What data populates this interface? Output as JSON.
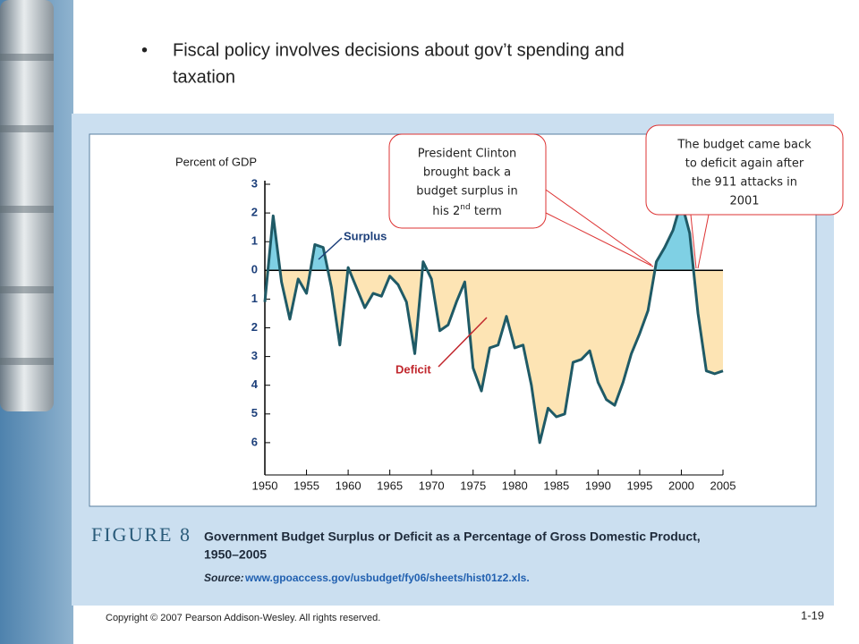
{
  "slide": {
    "bullet": [
      "Fiscal policy involves decisions about gov’t spending and",
      "taxation"
    ],
    "copyright": "Copyright © 2007 Pearson Addison-Wesley. All rights reserved.",
    "page": "1-19",
    "figure_label": "FIGURE 8",
    "caption": [
      "Government Budget Surplus or Deficit as a Percentage of Gross Domestic Product,",
      "1950–2005"
    ],
    "source_label": "Source:",
    "source_url": "www.gpoaccess.gov/usbudget/fy06/sheets/hist01z2.xls.",
    "callout_clinton": {
      "lines": [
        "President Clinton",
        "brought back a",
        "budget surplus in"
      ],
      "last": [
        "his 2",
        "nd",
        " term"
      ]
    },
    "callout_911": {
      "lines": [
        "The budget came back",
        "to deficit again after",
        "the 911 attacks in",
        "2001"
      ]
    }
  },
  "chart_data": {
    "type": "line",
    "y_label": "Percent of GDP",
    "annotations": {
      "surplus": "Surplus",
      "deficit": "Deficit"
    },
    "x": [
      1950,
      1951,
      1952,
      1953,
      1954,
      1955,
      1956,
      1957,
      1958,
      1959,
      1960,
      1961,
      1962,
      1963,
      1964,
      1965,
      1966,
      1967,
      1968,
      1969,
      1970,
      1971,
      1972,
      1973,
      1974,
      1975,
      1976,
      1977,
      1978,
      1979,
      1980,
      1981,
      1982,
      1983,
      1984,
      1985,
      1986,
      1987,
      1988,
      1989,
      1990,
      1991,
      1992,
      1993,
      1994,
      1995,
      1996,
      1997,
      1998,
      1999,
      2000,
      2001,
      2002,
      2003,
      2004,
      2005
    ],
    "values": [
      -1.1,
      1.9,
      -0.4,
      -1.7,
      -0.3,
      -0.8,
      0.9,
      0.8,
      -0.6,
      -2.6,
      0.1,
      -0.6,
      -1.3,
      -0.8,
      -0.9,
      -0.2,
      -0.5,
      -1.1,
      -2.9,
      0.3,
      -0.3,
      -2.1,
      -1.9,
      -1.1,
      -0.4,
      -3.4,
      -4.2,
      -2.7,
      -2.6,
      -1.6,
      -2.7,
      -2.6,
      -4.0,
      -6.0,
      -4.8,
      -5.1,
      -5.0,
      -3.2,
      -3.1,
      -2.8,
      -3.9,
      -4.5,
      -4.7,
      -3.9,
      -2.9,
      -2.2,
      -1.4,
      0.3,
      0.8,
      1.4,
      2.4,
      1.3,
      -1.5,
      -3.5,
      -3.6,
      -3.5
    ],
    "color": "#1f5a66",
    "fill_above": "#7fd0e4",
    "fill_below": "#fde4b4",
    "xlim": [
      1950,
      2005
    ],
    "xticks": [
      1950,
      1955,
      1960,
      1965,
      1970,
      1975,
      1980,
      1985,
      1990,
      1995,
      2000,
      2005
    ],
    "ylim": [
      -7,
      3
    ],
    "yticks": [
      3,
      2,
      1,
      0,
      {
        "value": -1,
        "label": "1"
      },
      {
        "value": -2,
        "label": "2"
      },
      {
        "value": -3,
        "label": "3"
      },
      {
        "value": -4,
        "label": "4"
      },
      {
        "value": -5,
        "label": "5"
      },
      {
        "value": -6,
        "label": "6"
      }
    ]
  }
}
